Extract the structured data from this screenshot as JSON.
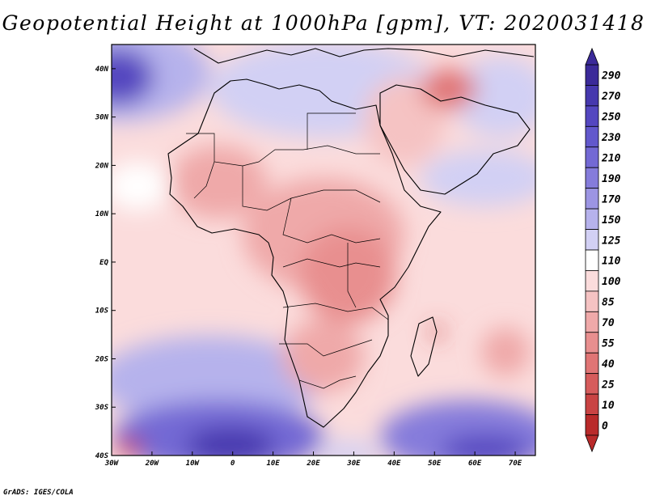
{
  "title": "Geopotential Height at 1000hPa [gpm], VT: 2020031418",
  "credit": "GrADS: IGES/COLA",
  "map": {
    "variable": "Geopotential Height at 1000hPa",
    "units": "gpm",
    "valid_time": "2020031418",
    "lon_range": [
      -30,
      75
    ],
    "lat_range": [
      -40,
      45
    ],
    "lon_ticks": [
      {
        "value": -30,
        "label": "30W"
      },
      {
        "value": -20,
        "label": "20W"
      },
      {
        "value": -10,
        "label": "10W"
      },
      {
        "value": 0,
        "label": "0"
      },
      {
        "value": 10,
        "label": "10E"
      },
      {
        "value": 20,
        "label": "20E"
      },
      {
        "value": 30,
        "label": "30E"
      },
      {
        "value": 40,
        "label": "40E"
      },
      {
        "value": 50,
        "label": "50E"
      },
      {
        "value": 60,
        "label": "60E"
      },
      {
        "value": 70,
        "label": "70E"
      }
    ],
    "lat_ticks": [
      {
        "value": 40,
        "label": "40N"
      },
      {
        "value": 30,
        "label": "30N"
      },
      {
        "value": 20,
        "label": "20N"
      },
      {
        "value": 10,
        "label": "10N"
      },
      {
        "value": 0,
        "label": "EQ"
      },
      {
        "value": -10,
        "label": "10S"
      },
      {
        "value": -20,
        "label": "20S"
      },
      {
        "value": -30,
        "label": "30S"
      },
      {
        "value": -40,
        "label": "40S"
      }
    ]
  },
  "colorbar": {
    "levels": [
      {
        "label": "290",
        "color": "#3b2a99"
      },
      {
        "label": "270",
        "color": "#4638ae"
      },
      {
        "label": "250",
        "color": "#5447c0"
      },
      {
        "label": "230",
        "color": "#6258cc"
      },
      {
        "label": "210",
        "color": "#7369d4"
      },
      {
        "label": "190",
        "color": "#857cdb"
      },
      {
        "label": "170",
        "color": "#9c95e3"
      },
      {
        "label": "150",
        "color": "#b6b2ec"
      },
      {
        "label": "125",
        "color": "#d2d0f4"
      },
      {
        "label": "110",
        "color": "#ffffff"
      },
      {
        "label": "100",
        "color": "#fbdcdc"
      },
      {
        "label": "85",
        "color": "#f5c3c3"
      },
      {
        "label": "70",
        "color": "#efa9a9"
      },
      {
        "label": "55",
        "color": "#e88f8f"
      },
      {
        "label": "40",
        "color": "#e07575"
      },
      {
        "label": "25",
        "color": "#d65c5c"
      },
      {
        "label": "10",
        "color": "#c94343"
      },
      {
        "label": "0",
        "color": "#b92a2a"
      }
    ]
  }
}
